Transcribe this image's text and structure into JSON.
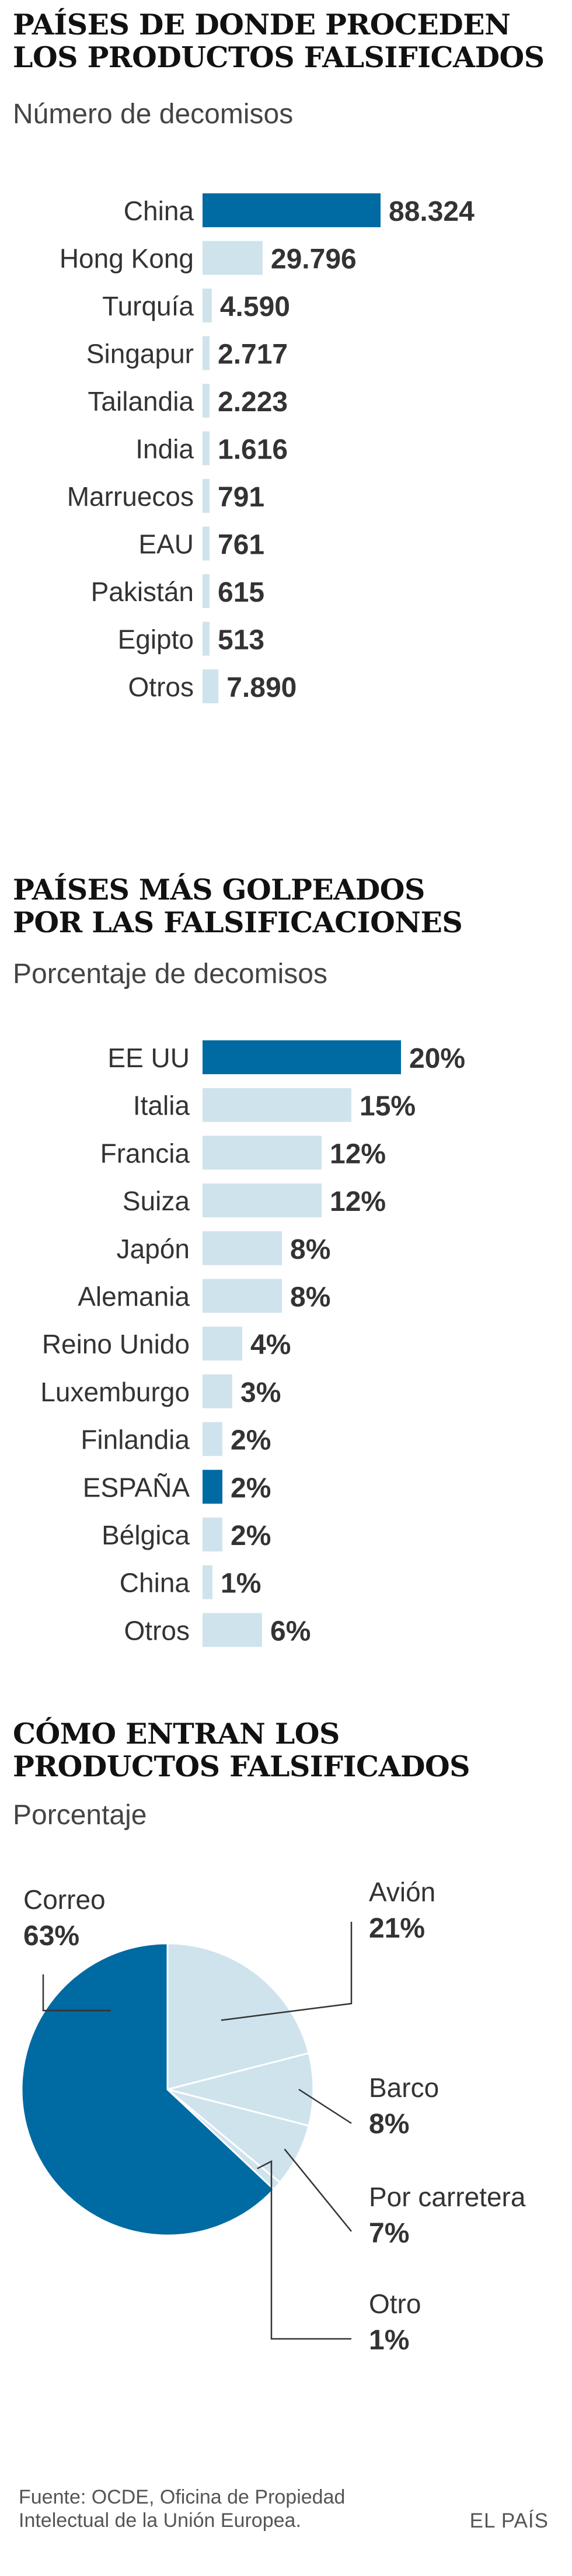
{
  "colors": {
    "highlight": "#006aa3",
    "bar": "#cfe3ed",
    "text": "#333333",
    "line": "#333333"
  },
  "chart_data": [
    {
      "type": "bar",
      "orientation": "horizontal",
      "title": "PAÍSES DE DONDE PROCEDEN LOS PRODUCTOS FALSIFICADOS",
      "title_lines": [
        "PAÍSES DE DONDE PROCEDEN",
        "LOS PRODUCTOS FALSIFICADOS"
      ],
      "subtitle": "Número de decomisos",
      "categories": [
        "China",
        "Hong Kong",
        "Turquía",
        "Singapur",
        "Tailandia",
        "India",
        "Marruecos",
        "EAU",
        "Pakistán",
        "Egipto",
        "Otros"
      ],
      "values": [
        88324,
        29796,
        4590,
        2717,
        2223,
        1616,
        791,
        761,
        615,
        513,
        7890
      ],
      "labels": [
        "88.324",
        "29.796",
        "4.590",
        "2.717",
        "2.223",
        "1.616",
        "791",
        "761",
        "615",
        "513",
        "7.890"
      ],
      "highlight": [
        "China"
      ]
    },
    {
      "type": "bar",
      "orientation": "horizontal",
      "title": "PAÍSES MÁS GOLPEADOS POR LAS FALSIFICACIONES",
      "title_lines": [
        "PAÍSES MÁS GOLPEADOS",
        "POR LAS FALSIFICACIONES"
      ],
      "subtitle": "Porcentaje de decomisos",
      "categories": [
        "EE UU",
        "Italia",
        "Francia",
        "Suiza",
        "Japón",
        "Alemania",
        "Reino Unido",
        "Luxemburgo",
        "Finlandia",
        "ESPAÑA",
        "Bélgica",
        "China",
        "Otros"
      ],
      "values": [
        20,
        15,
        12,
        12,
        8,
        8,
        4,
        3,
        2,
        2,
        2,
        1,
        6
      ],
      "labels": [
        "20%",
        "15%",
        "12%",
        "12%",
        "8%",
        "8%",
        "4%",
        "3%",
        "2%",
        "2%",
        "2%",
        "1%",
        "6%"
      ],
      "highlight": [
        "EE UU",
        "ESPAÑA"
      ]
    },
    {
      "type": "pie",
      "title": "CÓMO ENTRAN LOS PRODUCTOS FALSIFICADOS",
      "title_lines": [
        "CÓMO ENTRAN LOS",
        "PRODUCTOS FALSIFICADOS"
      ],
      "subtitle": "Porcentaje",
      "slices": [
        {
          "name": "Avión",
          "value": 21,
          "label": "21%"
        },
        {
          "name": "Barco",
          "value": 8,
          "label": "8%"
        },
        {
          "name": "Por carretera",
          "value": 7,
          "label": "7%"
        },
        {
          "name": "Otro",
          "value": 1,
          "label": "1%"
        },
        {
          "name": "Correo",
          "value": 63,
          "label": "63%",
          "highlight": true
        }
      ]
    }
  ],
  "footer": {
    "source_lines": [
      "Fuente: OCDE, Oficina de Propiedad",
      "Intelectual de la Unión Europea."
    ],
    "brand": "EL PAÍS"
  }
}
